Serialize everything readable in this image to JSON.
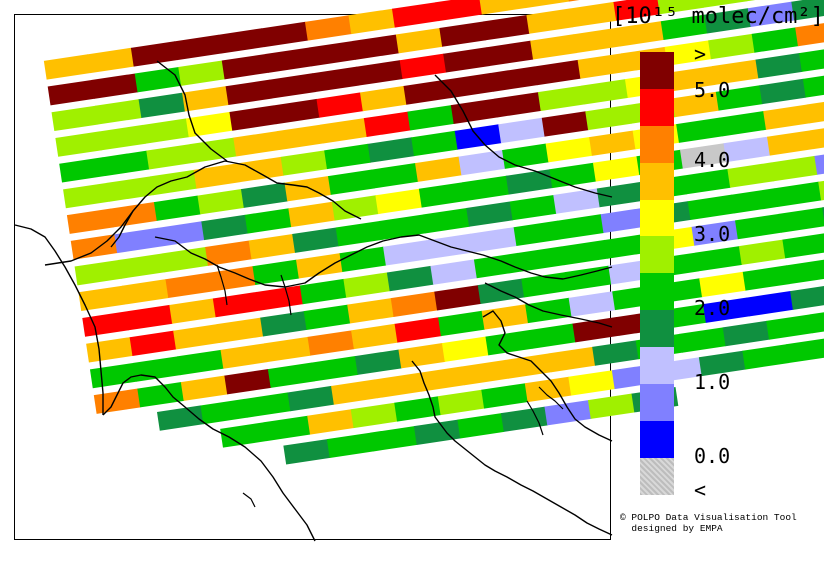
{
  "legend": {
    "title": "[10¹⁵ molec/cm²]",
    "bins": [
      {
        "color": "#800000"
      },
      {
        "color": "#ff0000"
      },
      {
        "color": "#ff8000"
      },
      {
        "color": "#ffc000"
      },
      {
        "color": "#ffff00"
      },
      {
        "color": "#a0f000"
      },
      {
        "color": "#00c800"
      },
      {
        "color": "#109040"
      },
      {
        "color": "#c0c0ff"
      },
      {
        "color": "#8080ff"
      },
      {
        "color": "#0000ff"
      },
      {
        "color": "#c8c8c8"
      }
    ],
    "labels": [
      ">",
      "5.0",
      "4.0",
      "3.0",
      "2.0",
      "1.0",
      "0.0",
      "<"
    ]
  },
  "credit": {
    "line1": "© POLPO Data Visualisation Tool",
    "line2": "  designed by EMPA"
  },
  "map": {
    "coastline_color": "#000000",
    "no_data_color": "#ffffff"
  }
}
